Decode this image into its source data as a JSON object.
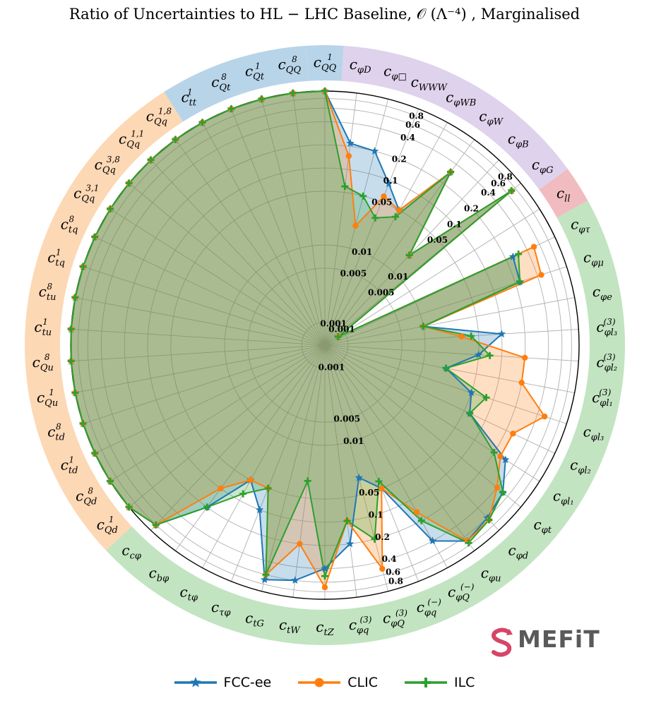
{
  "chart_data": {
    "type": "radar",
    "title": "Ratio of Uncertainties to HL − LHC Baseline, 𝒪 (Λ⁻⁴) , Marginalised",
    "scale": "log",
    "rlim": [
      0.0005,
      1
    ],
    "radial_ticks": [
      "0.001",
      "0.005",
      "0.01",
      "0.05",
      "0.1",
      "0.2",
      "0.4",
      "0.6",
      "0.8"
    ],
    "radial_tick_values": [
      0.001,
      0.005,
      0.01,
      0.05,
      0.1,
      0.2,
      0.4,
      0.6,
      0.8
    ],
    "grid": true,
    "legend_position": "bottom-center",
    "labels": [
      "c_{QQ}^1",
      "c_{φD}",
      "c_{φ□}",
      "c_{WWW}",
      "c_{φWB}",
      "c_{φW}",
      "c_{φB}",
      "c_{φG}",
      "c_{ll}",
      "c_{φτ}",
      "c_{φμ}",
      "c_{φe}",
      "c_{φl_3}^{(3)}",
      "c_{φl_2}^{(3)}",
      "c_{φl_1}^{(3)}",
      "c_{φl_3}",
      "c_{φl_2}",
      "c_{φl_1}",
      "c_{φt}",
      "c_{φd}",
      "c_{φu}",
      "c_{φQ}^{(-)}",
      "c_{φq}^{(-)}",
      "c_{φQ}^{(3)}",
      "c_{φq}^{(3)}",
      "c_{tZ}",
      "c_{tW}",
      "c_{tG}",
      "c_{τφ}",
      "c_{tφ}",
      "c_{bφ}",
      "c_{cφ}",
      "c_{Qd}^1",
      "c_{Qd}^8",
      "c_{td}^1",
      "c_{td}^8",
      "c_{Qu}^1",
      "c_{Qu}^8",
      "c_{tu}^1",
      "c_{tu}^8",
      "c_{tq}^1",
      "c_{tq}^8",
      "c_{Qq}^{3,1}",
      "c_{Qq}^{3,8}",
      "c_{Qq}^{1,1}",
      "c_{Qq}^{1,8}",
      "c_{tt}^1",
      "c_{Qt}^8",
      "c_{Qt}^1",
      "c_{QQ}^8"
    ],
    "label_lines": [
      [
        "c",
        "QQ",
        "1"
      ],
      [
        "c",
        "φD",
        ""
      ],
      [
        "c",
        "φ□",
        ""
      ],
      [
        "c",
        "WWW",
        ""
      ],
      [
        "c",
        "φWB",
        ""
      ],
      [
        "c",
        "φW",
        ""
      ],
      [
        "c",
        "φB",
        ""
      ],
      [
        "c",
        "φG",
        ""
      ],
      [
        "c",
        "ll",
        ""
      ],
      [
        "c",
        "φτ",
        ""
      ],
      [
        "c",
        "φμ",
        ""
      ],
      [
        "c",
        "φe",
        ""
      ],
      [
        "c",
        "φl₃",
        "(3)"
      ],
      [
        "c",
        "φl₂",
        "(3)"
      ],
      [
        "c",
        "φl₁",
        "(3)"
      ],
      [
        "c",
        "φl₃",
        ""
      ],
      [
        "c",
        "φl₂",
        ""
      ],
      [
        "c",
        "φl₁",
        ""
      ],
      [
        "c",
        "φt",
        ""
      ],
      [
        "c",
        "φd",
        ""
      ],
      [
        "c",
        "φu",
        ""
      ],
      [
        "c",
        "φQ",
        "(−)"
      ],
      [
        "c",
        "φq",
        "(−)"
      ],
      [
        "c",
        "φQ",
        "(3)"
      ],
      [
        "c",
        "φq",
        "(3)"
      ],
      [
        "c",
        "tZ",
        ""
      ],
      [
        "c",
        "tW",
        ""
      ],
      [
        "c",
        "tG",
        ""
      ],
      [
        "c",
        "τφ",
        ""
      ],
      [
        "c",
        "tφ",
        ""
      ],
      [
        "c",
        "bφ",
        ""
      ],
      [
        "c",
        "cφ",
        ""
      ],
      [
        "c",
        "Qd",
        "1"
      ],
      [
        "c",
        "Qd",
        "8"
      ],
      [
        "c",
        "td",
        "1"
      ],
      [
        "c",
        "td",
        "8"
      ],
      [
        "c",
        "Qu",
        "1"
      ],
      [
        "c",
        "Qu",
        "8"
      ],
      [
        "c",
        "tu",
        "1"
      ],
      [
        "c",
        "tu",
        "8"
      ],
      [
        "c",
        "tq",
        "1"
      ],
      [
        "c",
        "tq",
        "8"
      ],
      [
        "c",
        "Qq",
        "3,1"
      ],
      [
        "c",
        "Qq",
        "3,8"
      ],
      [
        "c",
        "Qq",
        "1,1"
      ],
      [
        "c",
        "Qq",
        "1,8"
      ],
      [
        "c",
        "tt",
        "1"
      ],
      [
        "c",
        "Qt",
        "8"
      ],
      [
        "c",
        "Qt",
        "1"
      ],
      [
        "c",
        "QQ",
        "8"
      ]
    ],
    "groups": [
      {
        "start": 0,
        "end": 0,
        "color": "#b8d4e8"
      },
      {
        "start": 1,
        "end": 7,
        "color": "#ded2ec"
      },
      {
        "start": 8,
        "end": 8,
        "color": "#f1bcbf"
      },
      {
        "start": 9,
        "end": 31,
        "color": "#c2e4c1"
      },
      {
        "start": 32,
        "end": 45,
        "color": "#fdd8b5"
      },
      {
        "start": 46,
        "end": 49,
        "color": "#b8d4e8"
      }
    ],
    "series": [
      {
        "name": "FCC-ee",
        "color": "#1f77b4",
        "marker": "star",
        "values": [
          1.0,
          0.22,
          0.2,
          0.09,
          0.05,
          0.3,
          0.02,
          0.7,
          0.0008,
          0.25,
          0.23,
          0.01,
          0.1,
          0.05,
          0.02,
          0.05,
          0.06,
          0.3,
          0.5,
          0.6,
          0.7,
          0.4,
          0.05,
          0.03,
          0.2,
          0.4,
          0.6,
          0.7,
          0.1,
          0.05,
          0.2,
          0.8,
          1,
          1,
          1,
          1,
          1,
          1,
          1,
          1,
          1,
          1,
          1,
          1,
          1,
          1,
          1,
          1,
          1,
          1
        ]
      },
      {
        "name": "CLIC",
        "color": "#ff7f0e",
        "marker": "circle",
        "values": [
          1.0,
          0.15,
          0.02,
          0.06,
          0.05,
          0.3,
          0.02,
          0.7,
          0.0008,
          0.5,
          0.45,
          0.01,
          0.03,
          0.2,
          0.2,
          0.5,
          0.25,
          0.25,
          0.4,
          0.65,
          0.7,
          0.15,
          0.05,
          0.5,
          0.1,
          0.7,
          0.2,
          0.6,
          0.05,
          0.05,
          0.1,
          0.8,
          1,
          1,
          1,
          1,
          1,
          1,
          1,
          1,
          1,
          1,
          1,
          1,
          1,
          1,
          1,
          1,
          1,
          1
        ]
      },
      {
        "name": "ILC",
        "color": "#2ca02c",
        "marker": "plus",
        "values": [
          1.0,
          0.06,
          0.05,
          0.03,
          0.04,
          0.3,
          0.02,
          0.7,
          0.0008,
          0.3,
          0.23,
          0.01,
          0.04,
          0.07,
          0.02,
          0.08,
          0.06,
          0.2,
          0.5,
          0.65,
          0.75,
          0.2,
          0.04,
          0.2,
          0.1,
          0.5,
          0.03,
          0.6,
          0.05,
          0.08,
          0.2,
          0.8,
          1,
          1,
          1,
          1,
          1,
          1,
          1,
          1,
          1,
          1,
          1,
          1,
          1,
          1,
          1,
          1,
          1,
          1
        ]
      }
    ]
  },
  "logo": {
    "text": "MEFiT",
    "color": "#d74467"
  },
  "legend": [
    {
      "name": "FCC-ee",
      "color": "#1f77b4",
      "marker": "star"
    },
    {
      "name": "CLIC",
      "color": "#ff7f0e",
      "marker": "circle"
    },
    {
      "name": "ILC",
      "color": "#2ca02c",
      "marker": "plus"
    }
  ]
}
